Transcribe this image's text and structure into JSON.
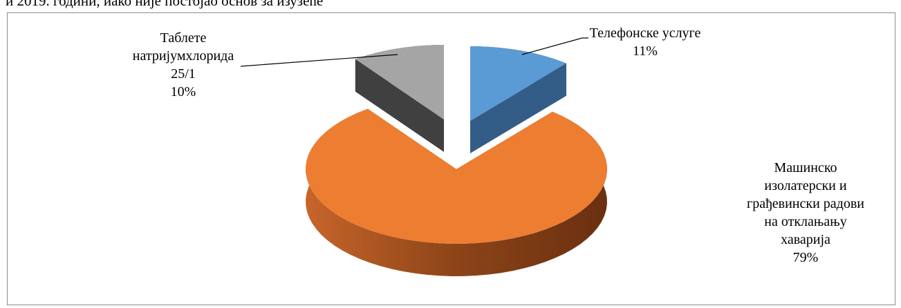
{
  "header": {
    "text": "и 2019. години, иако није постојао основ за изузеће"
  },
  "chart_data": {
    "type": "pie",
    "style": "3d-exploded",
    "slices": [
      {
        "label": "Телефонске услуге",
        "value": 11,
        "value_label": "11%",
        "color": "#5b9bd5",
        "side_color": "#335d86"
      },
      {
        "label": "Машинско изолатерски и грађевински радови на отклањању хаварија",
        "value": 79,
        "value_label": "79%",
        "color": "#ed7d31",
        "side_color": "#8a4115"
      },
      {
        "label": "Таблете натријумхлорида 25/1",
        "value": 10,
        "value_label": "10%",
        "color": "#a5a5a5",
        "side_color": "#404040"
      }
    ]
  },
  "labels": {
    "tel": {
      "line1": "Телефонске услуге",
      "pct": "11%"
    },
    "mash": {
      "line1": "Машинско",
      "line2": "изолатерски и",
      "line3": "грађевински радови",
      "line4": "на отклањању",
      "line5": "хаварија",
      "pct": "79%"
    },
    "tab": {
      "line1": "Таблете",
      "line2": "натријумхлорида",
      "line3": "25/1",
      "pct": "10%"
    }
  }
}
